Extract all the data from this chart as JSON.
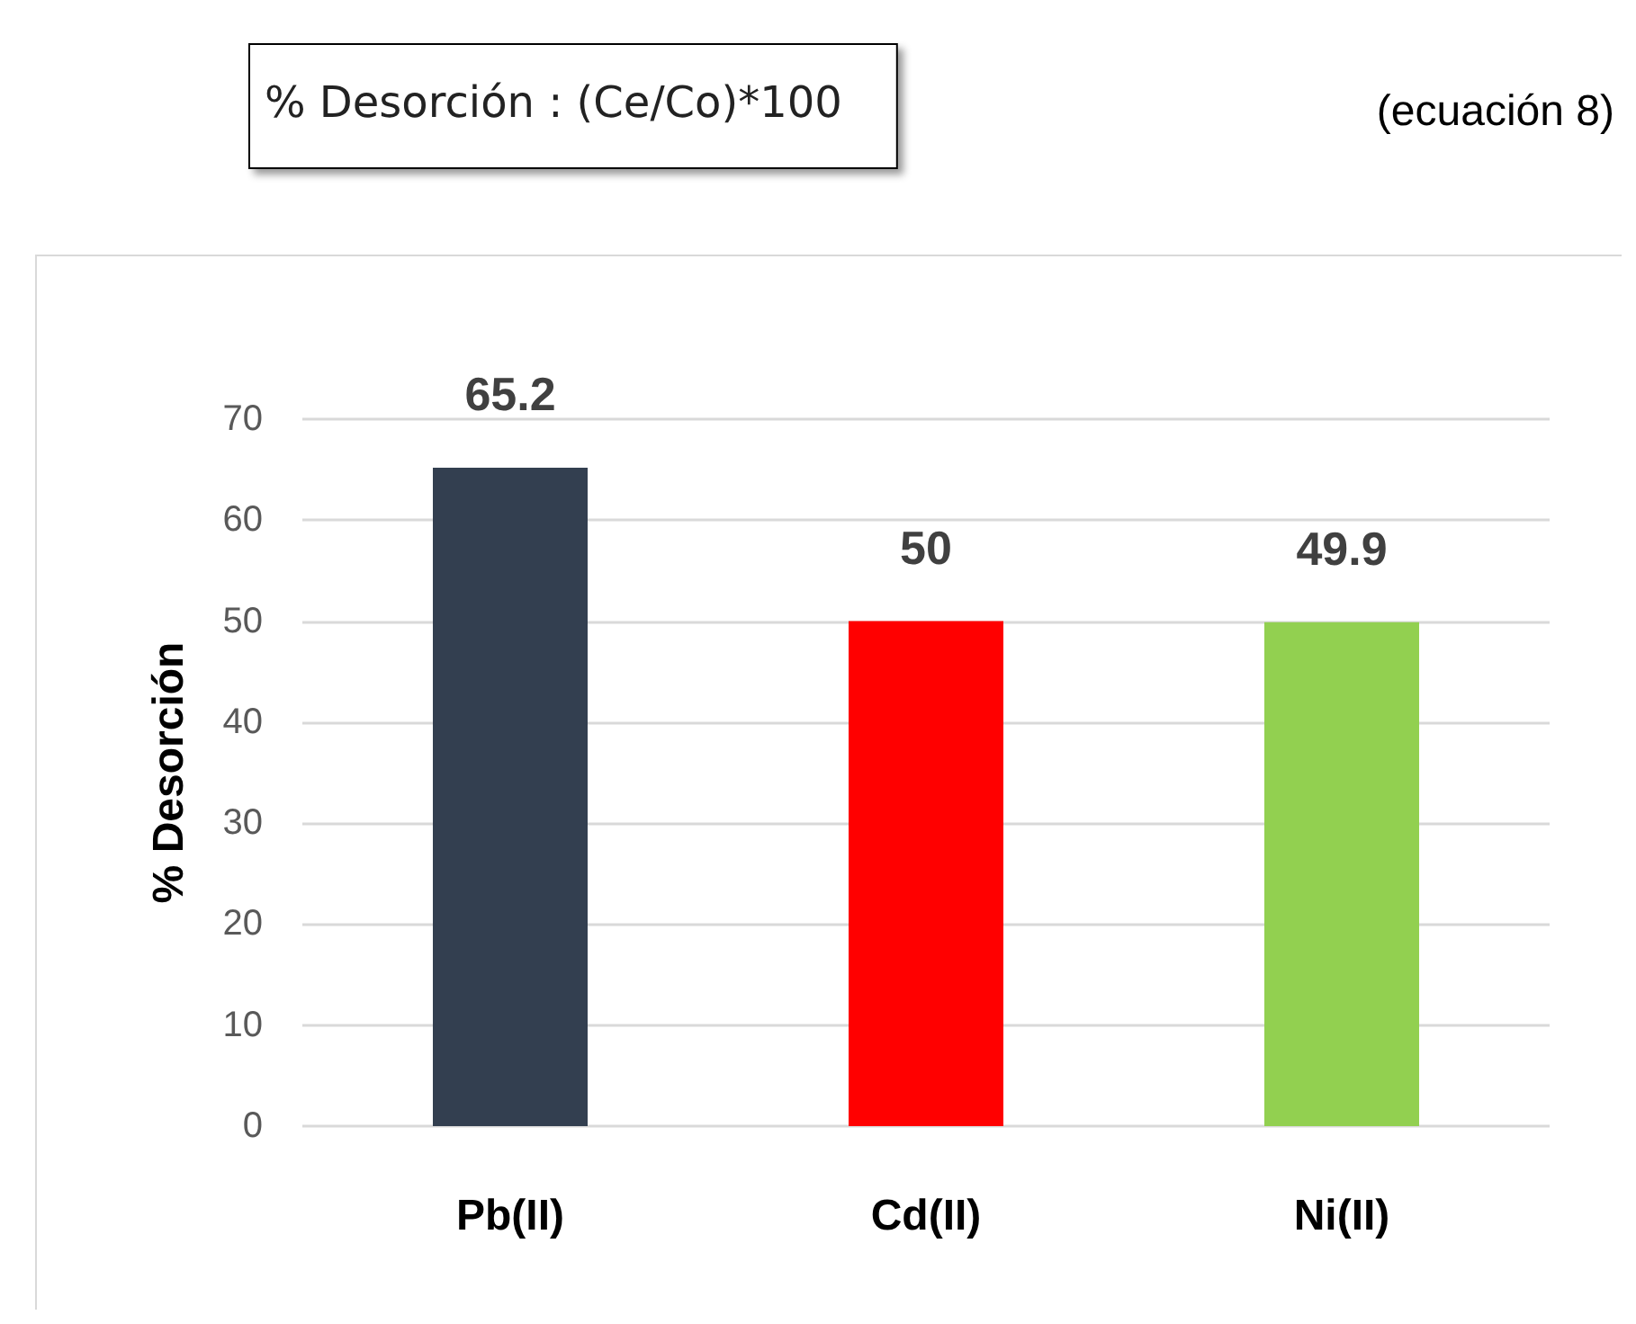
{
  "chart_data": {
    "type": "bar",
    "ylabel": "% Desorción",
    "annotations": [
      "% Desorción : (Ce/Co)*100",
      "(ecuación 8)"
    ],
    "categories": [
      "Pb(II)",
      "Cd(II)",
      "Ni(II)"
    ],
    "values": [
      65.2,
      50,
      49.9
    ],
    "colors": [
      "#333f50",
      "#ff0000",
      "#92d050"
    ],
    "ylim": [
      0,
      70
    ],
    "yticks": [
      0,
      10,
      20,
      30,
      40,
      50,
      60,
      70
    ],
    "grid": "y",
    "data_labels": true
  }
}
